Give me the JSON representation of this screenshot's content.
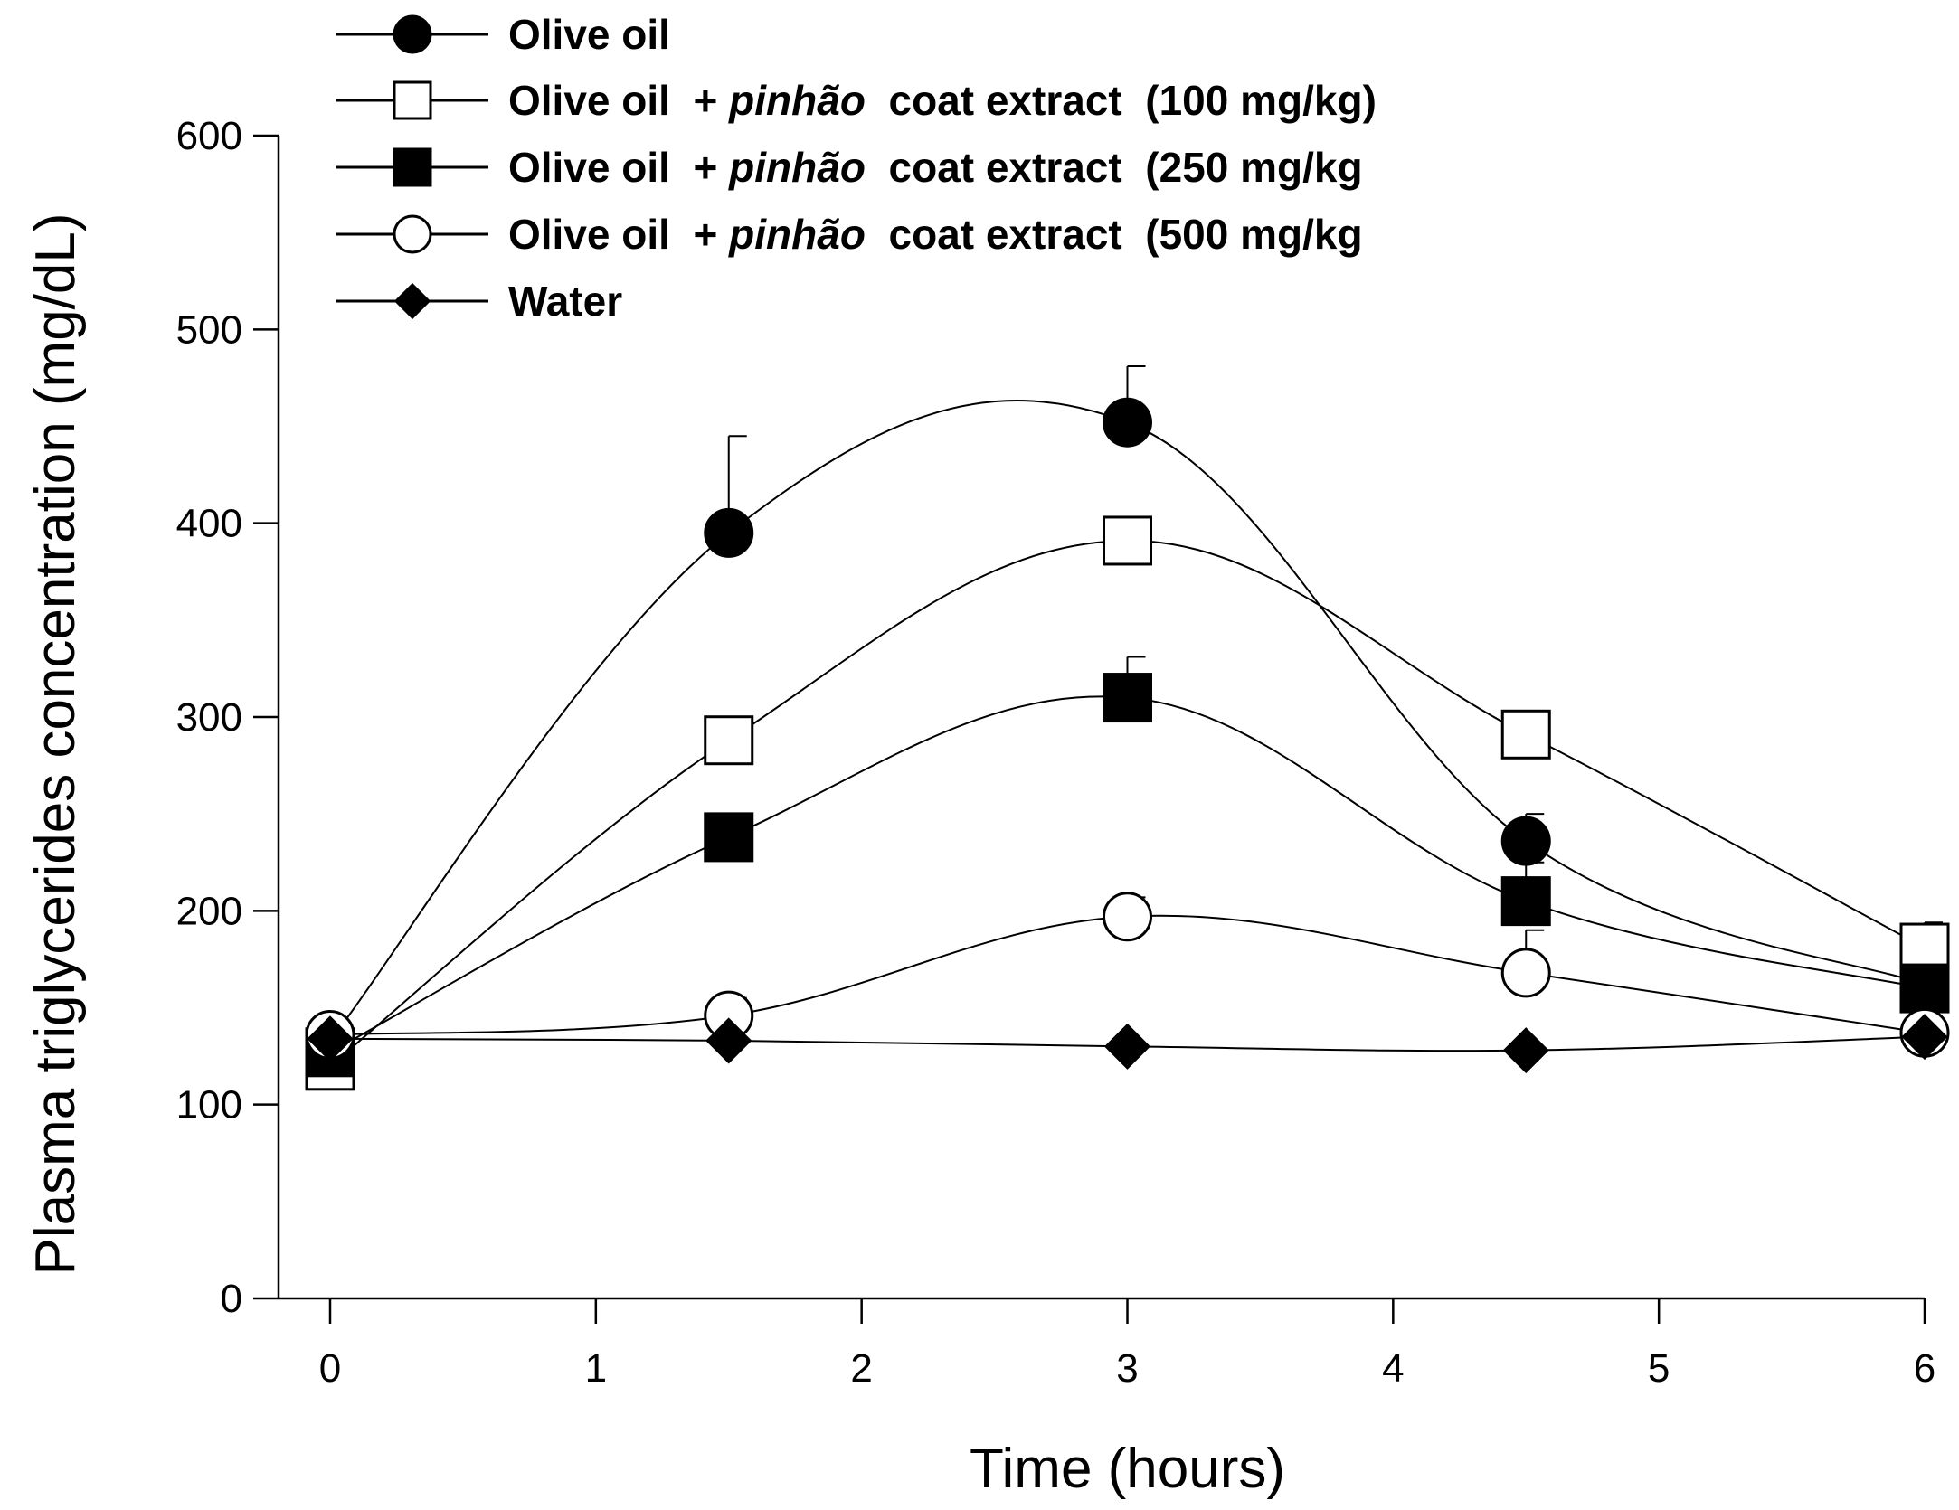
{
  "chart_data": {
    "type": "line",
    "title": "",
    "xlabel": "Time (hours)",
    "ylabel": "Plasma triglycerides concentration (mg/dL)",
    "xlim": [
      0,
      6
    ],
    "ylim": [
      0,
      600
    ],
    "xticks": [
      "0",
      "1",
      "2",
      "3",
      "4",
      "5",
      "6"
    ],
    "yticks": [
      "0",
      "100",
      "200",
      "300",
      "400",
      "500",
      "600"
    ],
    "grid": false,
    "legend_position": "top-left",
    "x": [
      0,
      1.5,
      3,
      4.5,
      6
    ],
    "series": [
      {
        "name": "Olive oil",
        "marker": "filled-circle",
        "values": [
          133,
          395,
          452,
          236,
          162
        ],
        "errors": [
          12,
          50,
          29,
          14,
          10
        ],
        "legend_parts": [
          "Olive oil"
        ]
      },
      {
        "name": "Olive oil + pinhão coat extract (100 mg/kg)",
        "marker": "open-square",
        "values": [
          120,
          288,
          391,
          291,
          181
        ],
        "errors": [
          0,
          0,
          10,
          10,
          13
        ],
        "legend_parts": [
          "Olive oil  + ",
          "pinhão",
          "  coat extract  (100 mg/kg)"
        ]
      },
      {
        "name": "Olive oil + pinhão coat extract (250 mg/kg",
        "marker": "filled-square",
        "values": [
          127,
          238,
          310,
          205,
          160
        ],
        "errors": [
          0,
          0,
          21,
          20,
          10
        ],
        "legend_parts": [
          "Olive oil  + ",
          "pinhão",
          "  coat extract  (250 mg/kg"
        ]
      },
      {
        "name": "Olive oil + pinhão coat extract (500 mg/kg",
        "marker": "open-circle",
        "values": [
          136,
          146,
          197,
          168,
          137
        ],
        "errors": [
          0,
          9,
          10,
          22,
          0
        ],
        "legend_parts": [
          "Olive oil  + ",
          "pinhão",
          "  coat extract  (500 mg/kg"
        ]
      },
      {
        "name": "Water",
        "marker": "filled-diamond",
        "values": [
          134,
          133,
          130,
          128,
          135
        ],
        "errors": [
          0,
          0,
          0,
          0,
          0
        ],
        "legend_parts": [
          "Water"
        ]
      }
    ]
  }
}
